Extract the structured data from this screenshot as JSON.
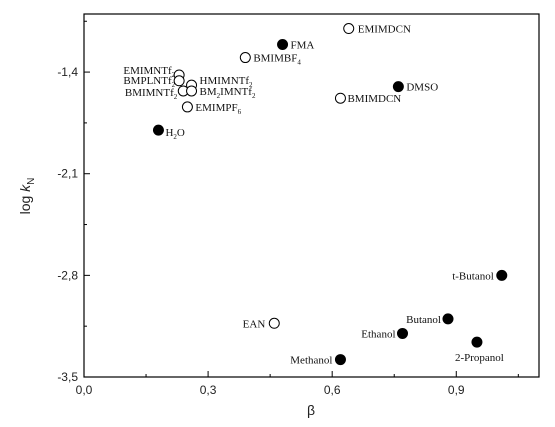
{
  "chart_data": {
    "type": "scatter",
    "xlabel": "β",
    "ylabel": {
      "main": "log ",
      "italic": "k",
      "sub": "N"
    },
    "xlim": [
      0.0,
      1.1
    ],
    "ylim": [
      -3.5,
      -1.0
    ],
    "xticks": [
      {
        "value": 0.0,
        "label": "0,0"
      },
      {
        "value": 0.3,
        "label": "0,3"
      },
      {
        "value": 0.6,
        "label": "0,6"
      },
      {
        "value": 0.9,
        "label": "0,9"
      }
    ],
    "yticks": [
      {
        "value": -1.4,
        "label": "-1,4"
      },
      {
        "value": -2.1,
        "label": "-2,1"
      },
      {
        "value": -2.8,
        "label": "-2,8"
      },
      {
        "value": -3.5,
        "label": "-3,5"
      }
    ],
    "grid": false,
    "series": [
      {
        "marker": "open-circle",
        "points": [
          {
            "x": 0.64,
            "y": -1.1,
            "label": "EMIMDCN",
            "sub": ""
          },
          {
            "x": 0.39,
            "y": -1.3,
            "label": "BMIMBF",
            "sub": "4"
          },
          {
            "x": 0.23,
            "y": -1.42,
            "label": "EMIMNTf",
            "sub": "2"
          },
          {
            "x": 0.23,
            "y": -1.46,
            "label": "BMPLNTf",
            "sub": "2"
          },
          {
            "x": 0.26,
            "y": -1.49,
            "label": "HMIMNTf",
            "sub": "2"
          },
          {
            "x": 0.24,
            "y": -1.53,
            "label": "BMIMNTf",
            "sub": "2"
          },
          {
            "x": 0.26,
            "y": -1.53,
            "label": "BM2IMNTf",
            "sub": "2"
          },
          {
            "x": 0.25,
            "y": -1.64,
            "label": "EMIMPF",
            "sub": "6"
          },
          {
            "x": 0.62,
            "y": -1.58,
            "label": "BMIMDCN",
            "sub": ""
          },
          {
            "x": 0.46,
            "y": -3.13,
            "label": "EAN",
            "sub": ""
          }
        ]
      },
      {
        "marker": "filled-circle",
        "points": [
          {
            "x": 0.48,
            "y": -1.21,
            "label": "FMA",
            "sub": ""
          },
          {
            "x": 0.76,
            "y": -1.5,
            "label": "DMSO",
            "sub": ""
          },
          {
            "x": 0.18,
            "y": -1.8,
            "label": "H",
            "sub": "2",
            "suffix": "O"
          },
          {
            "x": 1.01,
            "y": -2.8,
            "label": "t-Butanol",
            "sub": ""
          },
          {
            "x": 0.88,
            "y": -3.1,
            "label": "Butanol",
            "sub": ""
          },
          {
            "x": 0.77,
            "y": -3.2,
            "label": "Ethanol",
            "sub": ""
          },
          {
            "x": 0.95,
            "y": -3.26,
            "label": "2-Propanol",
            "sub": ""
          },
          {
            "x": 0.62,
            "y": -3.38,
            "label": "Methanol",
            "sub": ""
          }
        ]
      }
    ]
  }
}
